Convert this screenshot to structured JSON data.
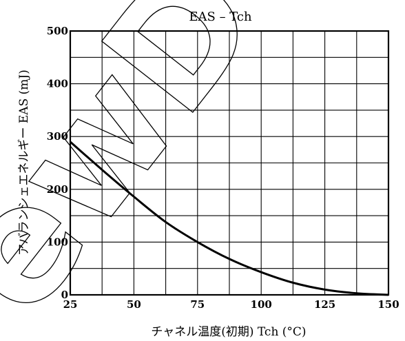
{
  "watermark": "ewDes",
  "chart_data": {
    "type": "line",
    "title": "EAS – Tch",
    "xlabel": "チャネル温度(初期)  Tch   (°C)",
    "ylabel": "アバランシェエネルギー   EAS   (mJ)",
    "xlim": [
      25,
      150
    ],
    "ylim": [
      0,
      500
    ],
    "x_ticks": [
      "25",
      "50",
      "75",
      "100",
      "125",
      "150"
    ],
    "y_ticks": [
      "0",
      "100",
      "200",
      "300",
      "400",
      "500"
    ],
    "grid": true,
    "series": [
      {
        "x": [
          25,
          37.5,
          50,
          62.5,
          75,
          87.5,
          100,
          112.5,
          125,
          137.5,
          150
        ],
        "y": [
          290,
          237,
          186,
          138,
          100,
          68,
          43,
          23,
          10,
          3,
          0
        ]
      }
    ]
  }
}
